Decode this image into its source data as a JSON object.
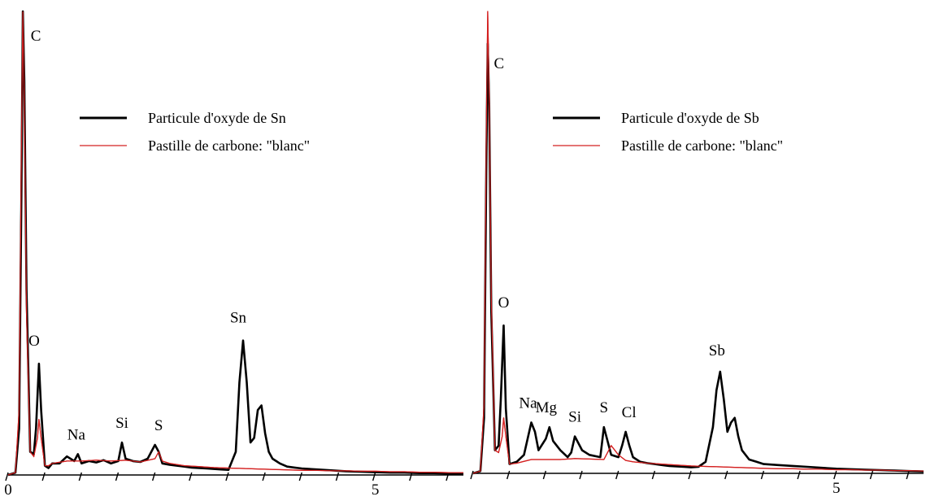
{
  "colors": {
    "sample": "#000000",
    "blank": "#d42020",
    "axis": "#000000",
    "background": "#ffffff"
  },
  "chart_data": [
    {
      "type": "line",
      "title": "",
      "xlabel": "",
      "ylabel": "",
      "xlim": [
        0,
        6.2
      ],
      "ylim": [
        0,
        100
      ],
      "x_ticks": [
        0,
        0.5,
        1,
        1.5,
        2,
        2.5,
        3,
        3.5,
        4,
        4.5,
        5,
        5.5,
        6
      ],
      "x_tick_labels": [
        {
          "x": 0,
          "label": "0"
        },
        {
          "x": 5,
          "label": "5"
        }
      ],
      "grid": false,
      "legend_position": "upper-center",
      "series": [
        {
          "name": "Particule d'oxyde de Sn",
          "color": "#000000",
          "x": [
            0,
            0.1,
            0.15,
            0.18,
            0.2,
            0.22,
            0.25,
            0.3,
            0.35,
            0.38,
            0.42,
            0.45,
            0.5,
            0.55,
            0.6,
            0.7,
            0.8,
            0.9,
            0.95,
            1.0,
            1.1,
            1.2,
            1.3,
            1.4,
            1.5,
            1.55,
            1.6,
            1.7,
            1.8,
            1.9,
            2.0,
            2.05,
            2.1,
            2.2,
            2.3,
            2.4,
            2.5,
            2.6,
            2.7,
            2.8,
            2.9,
            3.0,
            3.1,
            3.15,
            3.2,
            3.25,
            3.3,
            3.35,
            3.4,
            3.45,
            3.5,
            3.55,
            3.6,
            3.65,
            3.7,
            3.8,
            3.9,
            4.0,
            4.2,
            4.4,
            4.6,
            4.8,
            5.0,
            5.2,
            5.4,
            5.6,
            5.8,
            6.0,
            6.2
          ],
          "y": [
            0,
            0.5,
            10,
            60,
            100,
            85,
            40,
            5,
            4.5,
            10,
            24,
            14,
            2,
            1.5,
            2.5,
            2.5,
            4,
            3,
            4.5,
            2.5,
            3,
            2.7,
            3.2,
            2.5,
            3,
            7,
            3.5,
            3,
            2.8,
            3.5,
            6.5,
            5,
            2.5,
            2.2,
            2.0,
            1.8,
            1.6,
            1.5,
            1.4,
            1.3,
            1.2,
            1.1,
            5,
            20,
            29,
            20,
            7,
            8,
            14,
            15,
            9,
            5,
            3.5,
            3,
            2.5,
            1.8,
            1.6,
            1.4,
            1.2,
            1.0,
            0.8,
            0.7,
            0.6,
            0.5,
            0.5,
            0.4,
            0.4,
            0.3,
            0.2
          ]
        },
        {
          "name": "Pastille de carbone: \"blanc\"",
          "color": "#d42020",
          "x": [
            0,
            0.1,
            0.15,
            0.18,
            0.2,
            0.22,
            0.25,
            0.3,
            0.35,
            0.4,
            0.42,
            0.45,
            0.5,
            0.55,
            0.6,
            0.8,
            1.0,
            1.2,
            1.4,
            1.6,
            1.8,
            2.0,
            2.05,
            2.1,
            2.2,
            2.4,
            2.6,
            2.8,
            3.0,
            3.2,
            3.4,
            3.6,
            3.8,
            4.0,
            4.2,
            4.4,
            4.6,
            4.8,
            5.0,
            5.2,
            5.4,
            5.6,
            5.8,
            6.0,
            6.2
          ],
          "y": [
            0,
            0.5,
            14,
            70,
            100,
            80,
            35,
            5,
            4,
            8,
            12,
            8,
            2,
            2,
            2.5,
            3,
            3,
            3.2,
            3,
            3.2,
            2.8,
            3.5,
            5,
            3,
            2.5,
            2.0,
            1.8,
            1.6,
            1.5,
            1.4,
            1.3,
            1.2,
            1.1,
            1.0,
            1.0,
            0.9,
            0.9,
            0.8,
            0.8,
            0.7,
            0.7,
            0.6,
            0.6,
            0.5,
            0.5
          ]
        }
      ],
      "annotations": [
        {
          "text": "C",
          "x": 0.2,
          "y": 100
        },
        {
          "text": "O",
          "x": 0.42,
          "y": 24
        },
        {
          "text": "Na",
          "x": 0.95,
          "y": 4.5
        },
        {
          "text": "Si",
          "x": 1.55,
          "y": 7
        },
        {
          "text": "S",
          "x": 2.05,
          "y": 6.5
        },
        {
          "text": "Sn",
          "x": 3.2,
          "y": 29
        }
      ]
    },
    {
      "type": "line",
      "title": "",
      "xlabel": "",
      "ylabel": "",
      "xlim": [
        0,
        6.2
      ],
      "ylim": [
        0,
        100
      ],
      "x_ticks": [
        0,
        0.5,
        1,
        1.5,
        2,
        2.5,
        3,
        3.5,
        4,
        4.5,
        5,
        5.5,
        6
      ],
      "x_tick_labels": [
        {
          "x": 5,
          "label": "5"
        }
      ],
      "grid": false,
      "legend_position": "upper-center",
      "series": [
        {
          "name": "Particule d'oxyde de Sb",
          "color": "#000000",
          "x": [
            0,
            0.1,
            0.15,
            0.18,
            0.2,
            0.22,
            0.25,
            0.3,
            0.35,
            0.38,
            0.42,
            0.45,
            0.5,
            0.6,
            0.7,
            0.8,
            0.85,
            0.9,
            1.0,
            1.05,
            1.1,
            1.2,
            1.3,
            1.35,
            1.4,
            1.5,
            1.6,
            1.75,
            1.8,
            1.9,
            2.0,
            2.05,
            2.1,
            2.15,
            2.2,
            2.3,
            2.4,
            2.5,
            2.6,
            2.7,
            2.8,
            2.9,
            3.0,
            3.1,
            3.2,
            3.3,
            3.35,
            3.4,
            3.45,
            3.5,
            3.55,
            3.6,
            3.65,
            3.7,
            3.8,
            3.9,
            4.0,
            4.2,
            4.4,
            4.6,
            4.8,
            5.0,
            5.2,
            5.4,
            5.6,
            5.8,
            6.0,
            6.2
          ],
          "y": [
            0,
            0.5,
            12,
            65,
            93,
            80,
            35,
            5,
            6,
            16,
            32,
            14,
            2,
            2.5,
            4,
            11,
            9,
            5,
            7.5,
            10,
            7,
            5,
            3.5,
            4.5,
            8,
            5,
            4,
            3.5,
            10,
            4,
            3.5,
            6,
            9,
            6,
            3.5,
            2.5,
            2.2,
            2.0,
            1.8,
            1.6,
            1.5,
            1.4,
            1.3,
            1.4,
            2.5,
            10,
            18,
            22,
            16,
            9,
            11,
            12,
            8,
            5,
            3,
            2.5,
            2.0,
            1.8,
            1.6,
            1.4,
            1.2,
            1.0,
            0.9,
            0.8,
            0.7,
            0.6,
            0.5,
            0.4
          ]
        },
        {
          "name": "Pastille de carbone: \"blanc\"",
          "color": "#d42020",
          "x": [
            0,
            0.1,
            0.15,
            0.18,
            0.2,
            0.22,
            0.25,
            0.3,
            0.35,
            0.4,
            0.42,
            0.45,
            0.5,
            0.6,
            0.8,
            1.0,
            1.2,
            1.4,
            1.6,
            1.8,
            1.9,
            2.0,
            2.1,
            2.2,
            2.4,
            2.6,
            2.8,
            3.0,
            3.2,
            3.4,
            3.6,
            3.8,
            4.0,
            4.2,
            4.4,
            4.6,
            4.8,
            5.0,
            5.2,
            5.4,
            5.6,
            5.8,
            6.0,
            6.2
          ],
          "y": [
            0,
            0.5,
            15,
            72,
            100,
            82,
            38,
            5,
            4.5,
            8,
            12,
            8,
            2,
            2.2,
            3,
            3,
            3,
            3.2,
            3.1,
            3.0,
            6,
            4,
            2.8,
            2.5,
            2.2,
            2.0,
            1.8,
            1.6,
            1.5,
            1.4,
            1.3,
            1.2,
            1.1,
            1.0,
            1.0,
            0.9,
            0.9,
            0.8,
            0.8,
            0.7,
            0.7,
            0.6,
            0.6,
            0.5
          ]
        }
      ],
      "annotations": [
        {
          "text": "C",
          "x": 0.2,
          "y": 93
        },
        {
          "text": "O",
          "x": 0.42,
          "y": 32
        },
        {
          "text": "Na",
          "x": 0.8,
          "y": 11
        },
        {
          "text": "Mg",
          "x": 1.05,
          "y": 10
        },
        {
          "text": "Si",
          "x": 1.4,
          "y": 8
        },
        {
          "text": "S",
          "x": 1.8,
          "y": 10
        },
        {
          "text": "Cl",
          "x": 2.1,
          "y": 9
        },
        {
          "text": "Sb",
          "x": 3.4,
          "y": 22
        }
      ]
    }
  ]
}
